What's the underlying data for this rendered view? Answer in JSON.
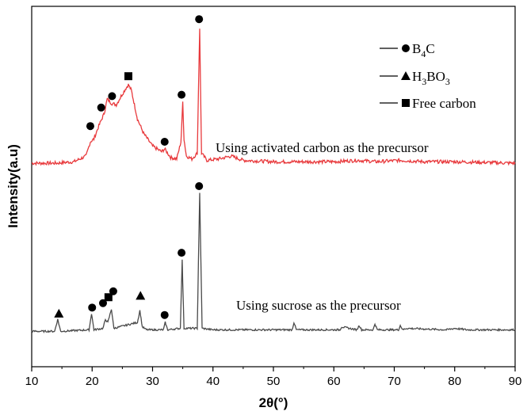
{
  "chart_data": {
    "type": "line",
    "xlabel": "2θ(°)",
    "ylabel": "Intensity(a.u)",
    "xlim": [
      10,
      90
    ],
    "x_ticks": [
      10,
      20,
      30,
      40,
      50,
      60,
      70,
      80,
      90
    ],
    "y_ticks_shown": false,
    "legend": {
      "placement": "top-right",
      "entries": [
        {
          "marker": "circle",
          "label_main": "B",
          "label_sub": "4",
          "label_tail": "C"
        },
        {
          "marker": "triangle",
          "label_main": "H",
          "label_sub": "3",
          "label_tail": "BO",
          "label_sub2": "3"
        },
        {
          "marker": "square",
          "label_main": "Free carbon"
        }
      ]
    },
    "series": [
      {
        "color": "#e8393c",
        "annotation": "Using activated carbon as the precursor",
        "baseline": 0.05,
        "noise": 0.012,
        "points": [
          [
            10,
            0.05
          ],
          [
            14,
            0.05
          ],
          [
            17,
            0.06
          ],
          [
            19,
            0.1
          ],
          [
            19.7,
            0.2
          ],
          [
            20.3,
            0.22
          ],
          [
            21,
            0.3
          ],
          [
            22,
            0.4
          ],
          [
            22.5,
            0.5
          ],
          [
            23.2,
            0.47
          ],
          [
            24,
            0.46
          ],
          [
            24.8,
            0.52
          ],
          [
            25.5,
            0.57
          ],
          [
            26,
            0.6
          ],
          [
            26.5,
            0.56
          ],
          [
            27,
            0.46
          ],
          [
            27.5,
            0.36
          ],
          [
            28.5,
            0.26
          ],
          [
            30,
            0.17
          ],
          [
            31.5,
            0.13
          ],
          [
            32,
            0.15
          ],
          [
            33,
            0.09
          ],
          [
            34,
            0.08
          ],
          [
            34.7,
            0.2
          ],
          [
            35,
            0.48
          ],
          [
            35.2,
            0.22
          ],
          [
            35.6,
            0.1
          ],
          [
            36.5,
            0.08
          ],
          [
            37.4,
            0.12
          ],
          [
            37.8,
            1.0
          ],
          [
            38.1,
            0.12
          ],
          [
            39,
            0.07
          ],
          [
            41,
            0.08
          ],
          [
            43,
            0.1
          ],
          [
            45,
            0.07
          ],
          [
            50,
            0.06
          ],
          [
            55,
            0.06
          ],
          [
            60,
            0.06
          ],
          [
            64,
            0.07
          ],
          [
            67,
            0.06
          ],
          [
            71,
            0.07
          ],
          [
            75,
            0.06
          ],
          [
            80,
            0.06
          ],
          [
            90,
            0.05
          ]
        ],
        "markers": [
          {
            "x": 19.7,
            "y": 0.31,
            "symbol": "circle"
          },
          {
            "x": 21.5,
            "y": 0.44,
            "symbol": "circle"
          },
          {
            "x": 23.3,
            "y": 0.52,
            "symbol": "circle"
          },
          {
            "x": 26.0,
            "y": 0.66,
            "symbol": "square"
          },
          {
            "x": 32.0,
            "y": 0.2,
            "symbol": "circle"
          },
          {
            "x": 34.8,
            "y": 0.53,
            "symbol": "circle"
          },
          {
            "x": 37.7,
            "y": 1.06,
            "symbol": "circle"
          }
        ]
      },
      {
        "color": "#4a4a4a",
        "annotation": "Using sucrose as the precursor",
        "baseline": 0.02,
        "noise": 0.006,
        "points": [
          [
            10,
            0.02
          ],
          [
            13.8,
            0.02
          ],
          [
            14.3,
            0.1
          ],
          [
            14.8,
            0.02
          ],
          [
            19.5,
            0.03
          ],
          [
            19.9,
            0.14
          ],
          [
            20.3,
            0.03
          ],
          [
            21.8,
            0.04
          ],
          [
            22.2,
            0.1
          ],
          [
            22.6,
            0.08
          ],
          [
            23.2,
            0.17
          ],
          [
            23.6,
            0.04
          ],
          [
            27.5,
            0.08
          ],
          [
            27.9,
            0.16
          ],
          [
            28.3,
            0.05
          ],
          [
            29,
            0.03
          ],
          [
            31.8,
            0.03
          ],
          [
            32.1,
            0.08
          ],
          [
            32.5,
            0.03
          ],
          [
            34.6,
            0.04
          ],
          [
            34.9,
            0.5
          ],
          [
            35.2,
            0.04
          ],
          [
            37.4,
            0.04
          ],
          [
            37.8,
            0.95
          ],
          [
            38.2,
            0.04
          ],
          [
            40,
            0.03
          ],
          [
            53.1,
            0.03
          ],
          [
            53.4,
            0.08
          ],
          [
            53.8,
            0.03
          ],
          [
            61,
            0.03
          ],
          [
            61.3,
            0.05
          ],
          [
            63.8,
            0.03
          ],
          [
            64.2,
            0.06
          ],
          [
            64.6,
            0.03
          ],
          [
            66.5,
            0.03
          ],
          [
            66.8,
            0.07
          ],
          [
            67.2,
            0.03
          ],
          [
            70.7,
            0.03
          ],
          [
            71,
            0.06
          ],
          [
            71.4,
            0.03
          ],
          [
            72,
            0.04
          ],
          [
            78.6,
            0.03
          ],
          [
            80,
            0.04
          ],
          [
            82,
            0.03
          ],
          [
            90,
            0.03
          ]
        ],
        "markers": [
          {
            "x": 14.5,
            "y": 0.14,
            "symbol": "triangle"
          },
          {
            "x": 20.0,
            "y": 0.18,
            "symbol": "circle"
          },
          {
            "x": 21.8,
            "y": 0.21,
            "symbol": "circle"
          },
          {
            "x": 22.7,
            "y": 0.25,
            "symbol": "square"
          },
          {
            "x": 23.5,
            "y": 0.29,
            "symbol": "circle"
          },
          {
            "x": 28.0,
            "y": 0.26,
            "symbol": "triangle"
          },
          {
            "x": 32.0,
            "y": 0.13,
            "symbol": "circle"
          },
          {
            "x": 34.8,
            "y": 0.55,
            "symbol": "circle"
          },
          {
            "x": 37.7,
            "y": 1.0,
            "symbol": "circle"
          }
        ]
      }
    ]
  }
}
